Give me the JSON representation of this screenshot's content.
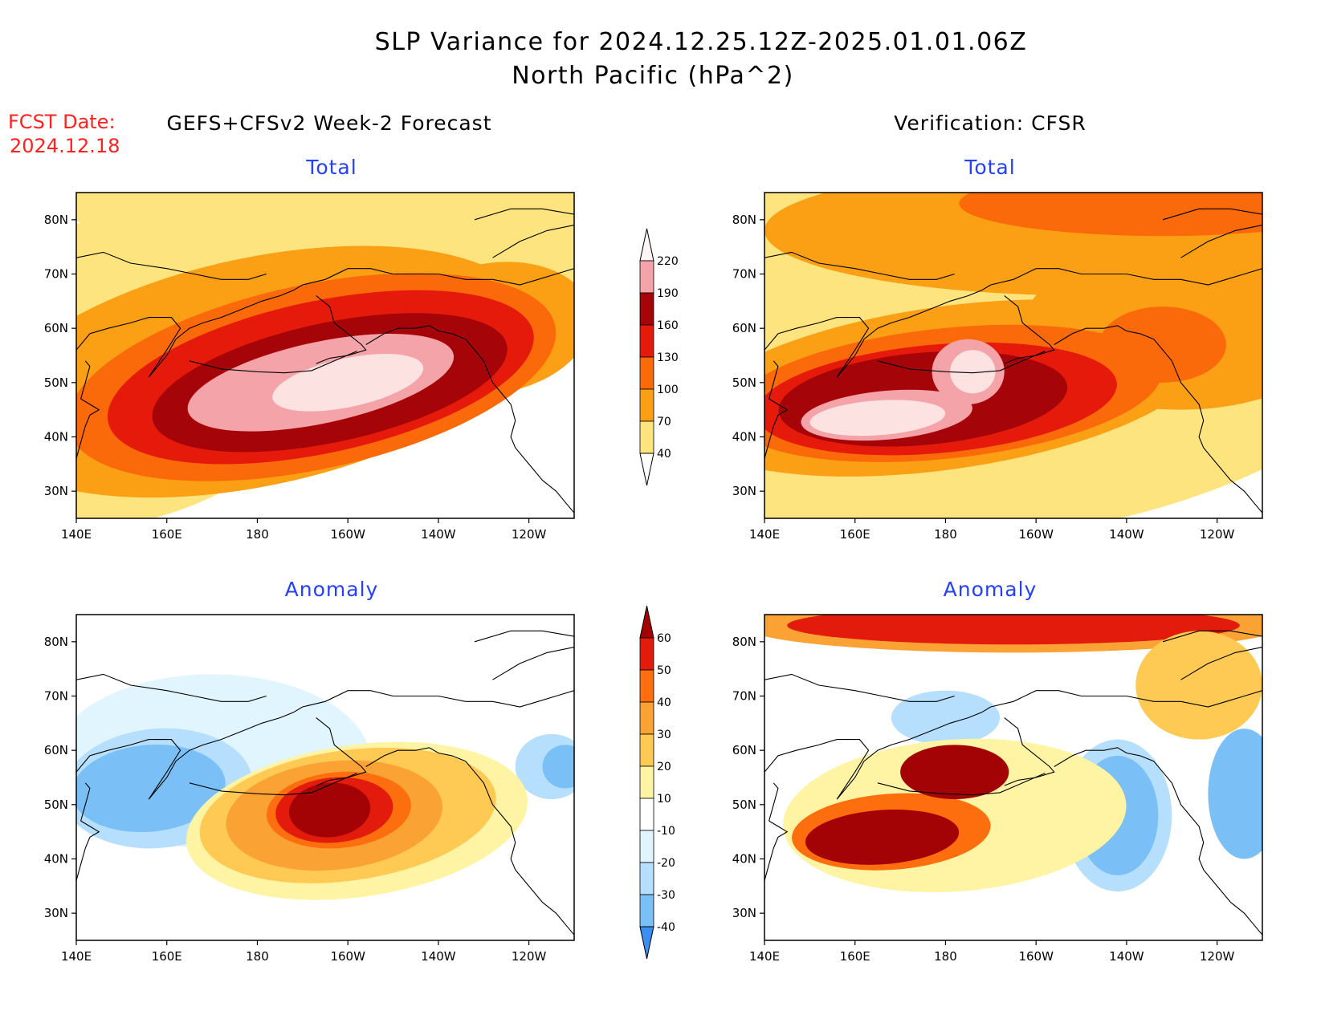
{
  "header": {
    "title_line1": "SLP Variance for 2024.12.25.12Z-2025.01.01.06Z",
    "title_line2": "North Pacific (hPa^2)",
    "fcst_label": "FCST Date:",
    "fcst_date": "2024.12.18",
    "left_column": "GEFS+CFSv2 Week-2 Forecast",
    "right_column": "Verification: CFSR"
  },
  "axes": {
    "x_labels": [
      "140E",
      "160E",
      "180",
      "160W",
      "140W",
      "120W"
    ],
    "y_labels": [
      "30N",
      "40N",
      "50N",
      "60N",
      "70N",
      "80N"
    ],
    "lon_range": [
      140,
      250
    ],
    "lat_range": [
      25,
      85
    ]
  },
  "colors": {
    "white": "#ffffff",
    "total": [
      "#fde47f",
      "#fb9f14",
      "#fb6a0a",
      "#e51a0b",
      "#a50408",
      "#f4a3a8",
      "#fde2e2"
    ],
    "anom_pos": [
      "#fef4a4",
      "#feca53",
      "#fba235",
      "#fd6e0e",
      "#e21b0c",
      "#a40306"
    ],
    "anom_neg": [
      "#e0f5fe",
      "#b5dffd",
      "#7ac0f6",
      "#3a8ff1",
      "#1c67dc"
    ]
  },
  "panels": [
    {
      "id": "fcst-total",
      "title": "Total"
    },
    {
      "id": "ver-total",
      "title": "Total"
    },
    {
      "id": "fcst-anom",
      "title": "Anomaly"
    },
    {
      "id": "ver-anom",
      "title": "Anomaly"
    }
  ],
  "colorbars": {
    "total": {
      "levels": [
        "40",
        "70",
        "100",
        "130",
        "160",
        "190",
        "220"
      ]
    },
    "anomaly": {
      "levels": [
        "-40",
        "-30",
        "-20",
        "-10",
        "10",
        "20",
        "30",
        "40",
        "50",
        "60"
      ]
    }
  },
  "chart_data": [
    {
      "type": "heatmap",
      "panel": "fcst-total",
      "levels": [
        40,
        70,
        100,
        130,
        160,
        190,
        220
      ],
      "features": [
        {
          "lon": 148,
          "lat": 52,
          "rx": 50,
          "ry": 28,
          "tilt": 14,
          "value": 55
        },
        {
          "lon": 248,
          "lat": 83,
          "rx": 110,
          "ry": 16,
          "tilt": 0,
          "value": 55
        },
        {
          "lon": 180,
          "lat": 52,
          "rx": 62,
          "ry": 21,
          "tilt": 12,
          "value": 85
        },
        {
          "lon": 232,
          "lat": 60,
          "rx": 22,
          "ry": 12,
          "tilt": 10,
          "value": 85
        },
        {
          "lon": 192,
          "lat": 51,
          "rx": 55,
          "ry": 17,
          "tilt": 12,
          "value": 115
        },
        {
          "lon": 194,
          "lat": 51,
          "rx": 48,
          "ry": 14,
          "tilt": 12,
          "value": 145
        },
        {
          "lon": 196,
          "lat": 50,
          "rx": 40,
          "ry": 11,
          "tilt": 12,
          "value": 175
        },
        {
          "lon": 194,
          "lat": 50,
          "rx": 30,
          "ry": 7.5,
          "tilt": 12,
          "value": 205
        },
        {
          "lon": 200,
          "lat": 50,
          "rx": 17,
          "ry": 4.5,
          "tilt": 12,
          "value": 230
        }
      ]
    },
    {
      "type": "heatmap",
      "panel": "ver-total",
      "levels": [
        40,
        70,
        100,
        130,
        160,
        190,
        220
      ],
      "features": [
        {
          "lon": 195,
          "lat": 62,
          "rx": 95,
          "ry": 40,
          "tilt": 8,
          "value": 55
        },
        {
          "lon": 212,
          "lat": 78,
          "rx": 72,
          "ry": 12,
          "tilt": 0,
          "value": 85
        },
        {
          "lon": 232,
          "lat": 60,
          "rx": 35,
          "ry": 15,
          "tilt": 0,
          "value": 85
        },
        {
          "lon": 180,
          "lat": 49,
          "rx": 58,
          "ry": 15,
          "tilt": 8,
          "value": 85
        },
        {
          "lon": 228,
          "lat": 83,
          "rx": 45,
          "ry": 6,
          "tilt": 0,
          "value": 115
        },
        {
          "lon": 228,
          "lat": 57,
          "rx": 14,
          "ry": 7,
          "tilt": 0,
          "value": 115
        },
        {
          "lon": 180,
          "lat": 48,
          "rx": 48,
          "ry": 12,
          "tilt": 6,
          "value": 115
        },
        {
          "lon": 178,
          "lat": 47,
          "rx": 40,
          "ry": 10,
          "tilt": 5,
          "value": 145
        },
        {
          "lon": 175,
          "lat": 47,
          "rx": 32,
          "ry": 8.5,
          "tilt": 5,
          "value": 175
        },
        {
          "lon": 167,
          "lat": 44,
          "rx": 19,
          "ry": 4.5,
          "tilt": 5,
          "value": 205
        },
        {
          "lon": 185,
          "lat": 52,
          "rx": 8,
          "ry": 6,
          "tilt": 0,
          "value": 205
        },
        {
          "lon": 165,
          "lat": 43.5,
          "rx": 15,
          "ry": 3.2,
          "tilt": 4,
          "value": 230
        },
        {
          "lon": 186,
          "lat": 52,
          "rx": 5,
          "ry": 4,
          "tilt": 0,
          "value": 230
        }
      ]
    },
    {
      "type": "heatmap",
      "panel": "fcst-anom",
      "levels": [
        -40,
        -30,
        -20,
        -10,
        10,
        20,
        30,
        40,
        50,
        60
      ],
      "features": [
        {
          "lon": 170,
          "lat": 58,
          "rx": 35,
          "ry": 16,
          "tilt": 0,
          "value": -15
        },
        {
          "lon": 158,
          "lat": 53,
          "rx": 21,
          "ry": 11,
          "tilt": 5,
          "value": -25
        },
        {
          "lon": 156,
          "lat": 53,
          "rx": 17,
          "ry": 8,
          "tilt": 5,
          "value": -35
        },
        {
          "lon": 245,
          "lat": 57,
          "rx": 8,
          "ry": 6,
          "tilt": 0,
          "value": -25
        },
        {
          "lon": 248,
          "lat": 57,
          "rx": 5,
          "ry": 4,
          "tilt": 0,
          "value": -35
        },
        {
          "lon": 202,
          "lat": 47,
          "rx": 38,
          "ry": 14,
          "tilt": 8,
          "value": 15
        },
        {
          "lon": 200,
          "lat": 48,
          "rx": 33,
          "ry": 12,
          "tilt": 8,
          "value": 25
        },
        {
          "lon": 197,
          "lat": 48,
          "rx": 24,
          "ry": 10,
          "tilt": 6,
          "value": 35
        },
        {
          "lon": 198,
          "lat": 49,
          "rx": 16,
          "ry": 7,
          "tilt": 5,
          "value": 45
        },
        {
          "lon": 197,
          "lat": 49,
          "rx": 13,
          "ry": 6,
          "tilt": 5,
          "value": 55
        },
        {
          "lon": 196,
          "lat": 49,
          "rx": 9,
          "ry": 5,
          "tilt": 5,
          "value": 65
        }
      ]
    },
    {
      "type": "heatmap",
      "panel": "ver-anom",
      "levels": [
        -40,
        -30,
        -20,
        -10,
        10,
        20,
        30,
        40,
        50,
        60
      ],
      "features": [
        {
          "lon": 195,
          "lat": 83,
          "rx": 60,
          "ry": 5,
          "tilt": 0,
          "value": 35
        },
        {
          "lon": 195,
          "lat": 83,
          "rx": 50,
          "ry": 3.5,
          "tilt": 0,
          "value": 55
        },
        {
          "lon": 236,
          "lat": 72,
          "rx": 14,
          "ry": 10,
          "tilt": 0,
          "value": 25
        },
        {
          "lon": 180,
          "lat": 66,
          "rx": 12,
          "ry": 5,
          "tilt": 0,
          "value": -25
        },
        {
          "lon": 218,
          "lat": 48,
          "rx": 12,
          "ry": 14,
          "tilt": 0,
          "value": -25
        },
        {
          "lon": 218,
          "lat": 48,
          "rx": 9,
          "ry": 11,
          "tilt": 0,
          "value": -35
        },
        {
          "lon": 246,
          "lat": 52,
          "rx": 8,
          "ry": 12,
          "tilt": 0,
          "value": -35
        },
        {
          "lon": 182,
          "lat": 48,
          "rx": 38,
          "ry": 14,
          "tilt": 4,
          "value": 15
        },
        {
          "lon": 168,
          "lat": 45,
          "rx": 22,
          "ry": 7,
          "tilt": 4,
          "value": 45
        },
        {
          "lon": 166,
          "lat": 44,
          "rx": 17,
          "ry": 5,
          "tilt": 4,
          "value": 65
        },
        {
          "lon": 182,
          "lat": 56,
          "rx": 12,
          "ry": 5,
          "tilt": 0,
          "value": 65
        }
      ]
    }
  ]
}
